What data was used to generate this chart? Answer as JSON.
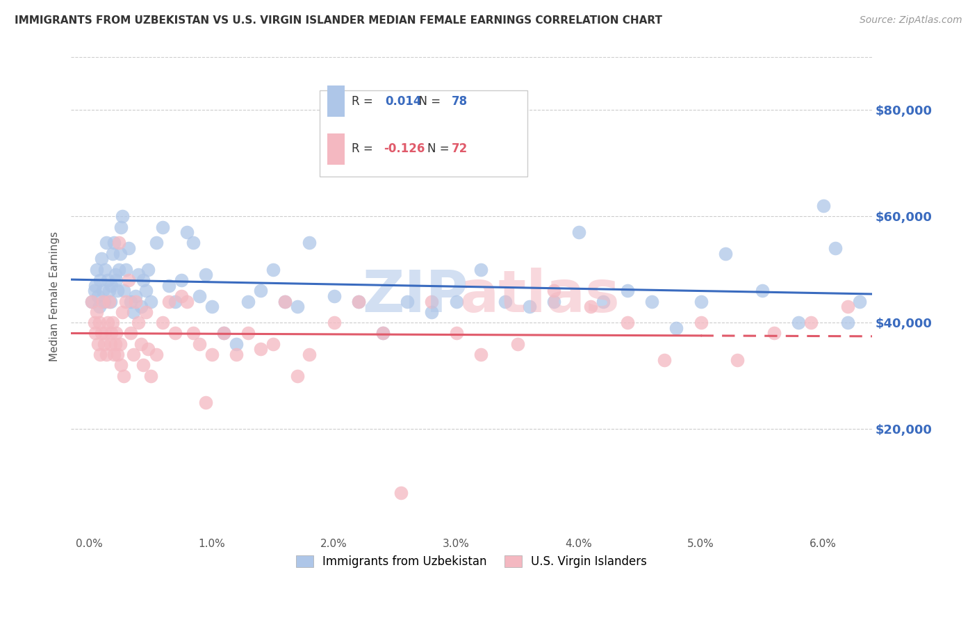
{
  "title": "IMMIGRANTS FROM UZBEKISTAN VS U.S. VIRGIN ISLANDER MEDIAN FEMALE EARNINGS CORRELATION CHART",
  "source": "Source: ZipAtlas.com",
  "ylabel": "Median Female Earnings",
  "xlabel_ticks": [
    "0.0%",
    "1.0%",
    "2.0%",
    "3.0%",
    "4.0%",
    "5.0%",
    "6.0%"
  ],
  "xlabel_vals": [
    0.0,
    1.0,
    2.0,
    3.0,
    4.0,
    5.0,
    6.0
  ],
  "ytick_labels": [
    "$20,000",
    "$40,000",
    "$60,000",
    "$80,000"
  ],
  "ytick_vals": [
    20000,
    40000,
    60000,
    80000
  ],
  "ylim": [
    0,
    90000
  ],
  "xlim": [
    -0.15,
    6.4
  ],
  "legend_labels": [
    "Immigrants from Uzbekistan",
    "U.S. Virgin Islanders"
  ],
  "legend_R": [
    "0.014",
    "-0.126"
  ],
  "legend_N": [
    "78",
    "72"
  ],
  "blue_color": "#aec6e8",
  "pink_color": "#f4b8c1",
  "blue_line_color": "#3a6bbf",
  "pink_line_color": "#e05a6a",
  "background_color": "#ffffff",
  "blue_scatter_x": [
    0.02,
    0.04,
    0.05,
    0.06,
    0.07,
    0.08,
    0.09,
    0.1,
    0.11,
    0.12,
    0.13,
    0.14,
    0.15,
    0.16,
    0.17,
    0.18,
    0.19,
    0.2,
    0.21,
    0.22,
    0.23,
    0.24,
    0.25,
    0.26,
    0.27,
    0.28,
    0.3,
    0.32,
    0.34,
    0.36,
    0.38,
    0.4,
    0.42,
    0.44,
    0.46,
    0.48,
    0.5,
    0.55,
    0.6,
    0.65,
    0.7,
    0.75,
    0.8,
    0.85,
    0.9,
    0.95,
    1.0,
    1.1,
    1.2,
    1.3,
    1.4,
    1.5,
    1.6,
    1.7,
    1.8,
    2.0,
    2.2,
    2.4,
    2.6,
    2.8,
    3.0,
    3.2,
    3.4,
    3.6,
    3.8,
    4.0,
    4.2,
    4.4,
    4.6,
    4.8,
    5.0,
    5.2,
    5.5,
    5.8,
    6.0,
    6.1,
    6.2,
    6.3
  ],
  "blue_scatter_y": [
    44000,
    46000,
    47000,
    50000,
    45000,
    43000,
    48000,
    52000,
    46000,
    44000,
    50000,
    55000,
    48000,
    46000,
    44000,
    47000,
    53000,
    55000,
    49000,
    48000,
    46000,
    50000,
    53000,
    58000,
    60000,
    46000,
    50000,
    54000,
    44000,
    42000,
    45000,
    49000,
    43000,
    48000,
    46000,
    50000,
    44000,
    55000,
    58000,
    47000,
    44000,
    48000,
    57000,
    55000,
    45000,
    49000,
    43000,
    38000,
    36000,
    44000,
    46000,
    50000,
    44000,
    43000,
    55000,
    45000,
    44000,
    38000,
    44000,
    42000,
    44000,
    50000,
    44000,
    43000,
    44000,
    57000,
    44000,
    46000,
    44000,
    39000,
    44000,
    53000,
    46000,
    40000,
    62000,
    54000,
    40000,
    44000
  ],
  "pink_scatter_x": [
    0.02,
    0.04,
    0.05,
    0.06,
    0.07,
    0.08,
    0.09,
    0.1,
    0.11,
    0.12,
    0.13,
    0.14,
    0.15,
    0.16,
    0.17,
    0.18,
    0.19,
    0.2,
    0.21,
    0.22,
    0.23,
    0.24,
    0.25,
    0.26,
    0.27,
    0.28,
    0.3,
    0.32,
    0.34,
    0.36,
    0.38,
    0.4,
    0.42,
    0.44,
    0.46,
    0.48,
    0.5,
    0.55,
    0.6,
    0.65,
    0.7,
    0.75,
    0.8,
    0.85,
    0.9,
    0.95,
    1.0,
    1.1,
    1.2,
    1.3,
    1.4,
    1.5,
    1.6,
    1.7,
    1.8,
    2.0,
    2.2,
    2.4,
    2.55,
    2.8,
    3.0,
    3.2,
    3.5,
    3.8,
    4.1,
    4.4,
    4.7,
    5.0,
    5.3,
    5.6,
    5.9,
    6.2
  ],
  "pink_scatter_y": [
    44000,
    40000,
    38000,
    42000,
    36000,
    40000,
    34000,
    38000,
    44000,
    36000,
    38000,
    34000,
    40000,
    44000,
    36000,
    38000,
    40000,
    34000,
    36000,
    38000,
    34000,
    55000,
    36000,
    32000,
    42000,
    30000,
    44000,
    48000,
    38000,
    34000,
    44000,
    40000,
    36000,
    32000,
    42000,
    35000,
    30000,
    34000,
    40000,
    44000,
    38000,
    45000,
    44000,
    38000,
    36000,
    25000,
    34000,
    38000,
    34000,
    38000,
    35000,
    36000,
    44000,
    30000,
    34000,
    40000,
    44000,
    38000,
    8000,
    44000,
    38000,
    34000,
    36000,
    46000,
    43000,
    40000,
    33000,
    40000,
    33000,
    38000,
    40000,
    43000
  ]
}
